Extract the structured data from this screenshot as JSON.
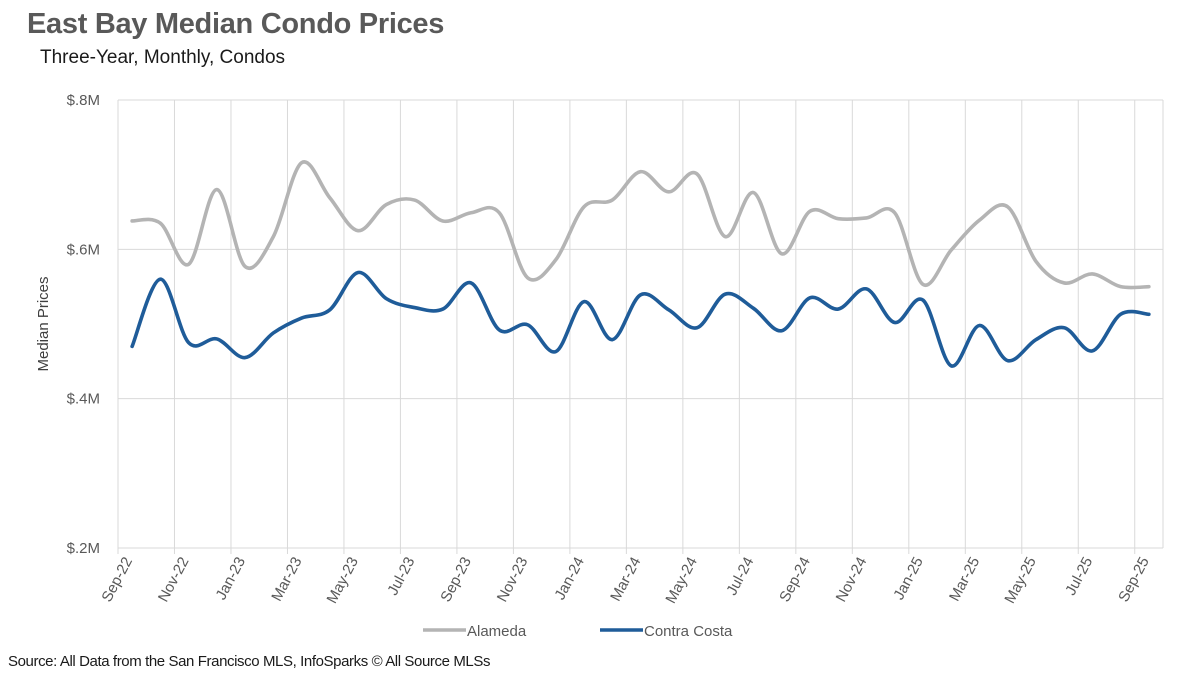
{
  "chart_data": {
    "type": "line",
    "title": "East Bay Median Condo Prices",
    "subtitle": "Three-Year, Monthly, Condos",
    "xlabel": "",
    "ylabel": "Median Prices",
    "ylim": [
      0.2,
      0.8
    ],
    "yticks": [
      0.2,
      0.4,
      0.6,
      0.8
    ],
    "ytick_labels": [
      "$.2M",
      "$.4M",
      "$.6M",
      "$.8M"
    ],
    "y_units": "millions USD",
    "grid": true,
    "legend_position": "bottom",
    "x": [
      "Sep-22",
      "Oct-22",
      "Nov-22",
      "Dec-22",
      "Jan-23",
      "Feb-23",
      "Mar-23",
      "Apr-23",
      "May-23",
      "Jun-23",
      "Jul-23",
      "Aug-23",
      "Sep-23",
      "Oct-23",
      "Nov-23",
      "Dec-23",
      "Jan-24",
      "Feb-24",
      "Mar-24",
      "Apr-24",
      "May-24",
      "Jun-24",
      "Jul-24",
      "Aug-24",
      "Sep-24",
      "Oct-24",
      "Nov-24",
      "Dec-24",
      "Jan-25",
      "Feb-25",
      "Mar-25",
      "Apr-25",
      "May-25",
      "Jun-25",
      "Jul-25",
      "Aug-25",
      "Sep-25"
    ],
    "xtick_labels": [
      "Sep-22",
      "Nov-22",
      "Jan-23",
      "Mar-23",
      "May-23",
      "Jul-23",
      "Sep-23",
      "Nov-23",
      "Jan-24",
      "Mar-24",
      "May-24",
      "Jul-24",
      "Sep-24",
      "Nov-24",
      "Jan-25",
      "Mar-25",
      "May-25",
      "Jul-25",
      "Sep-25"
    ],
    "series": [
      {
        "name": "Alameda",
        "color": "#b4b4b4",
        "values": [
          0.638,
          0.635,
          0.58,
          0.68,
          0.577,
          0.617,
          0.716,
          0.669,
          0.625,
          0.66,
          0.666,
          0.638,
          0.649,
          0.649,
          0.562,
          0.586,
          0.657,
          0.666,
          0.704,
          0.677,
          0.701,
          0.617,
          0.676,
          0.594,
          0.651,
          0.641,
          0.642,
          0.649,
          0.553,
          0.599,
          0.639,
          0.657,
          0.584,
          0.555,
          0.567,
          0.55,
          0.55
        ]
      },
      {
        "name": "Contra Costa",
        "color": "#1f5c99",
        "values": [
          0.47,
          0.56,
          0.475,
          0.48,
          0.455,
          0.488,
          0.508,
          0.519,
          0.569,
          0.534,
          0.522,
          0.52,
          0.555,
          0.492,
          0.499,
          0.463,
          0.53,
          0.479,
          0.539,
          0.519,
          0.495,
          0.54,
          0.521,
          0.491,
          0.535,
          0.52,
          0.547,
          0.502,
          0.532,
          0.444,
          0.498,
          0.451,
          0.479,
          0.495,
          0.464,
          0.513,
          0.513
        ]
      }
    ]
  },
  "source": "Source: All Data from the San Francisco MLS, InfoSparks © All Source MLSs"
}
